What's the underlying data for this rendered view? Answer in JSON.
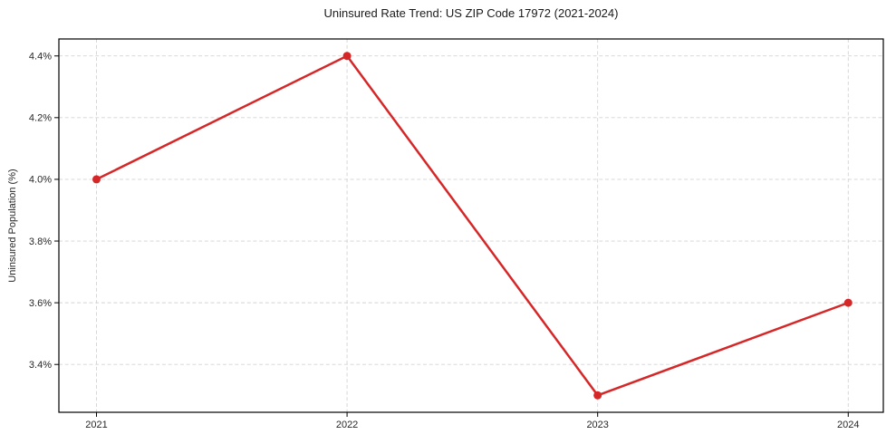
{
  "chart_data": {
    "type": "line",
    "title": "Uninsured Rate Trend: US ZIP Code 17972 (2021-2024)",
    "xlabel": "",
    "ylabel": "Uninsured Population (%)",
    "x": [
      2021,
      2022,
      2023,
      2024
    ],
    "x_tick_labels": [
      "2021",
      "2022",
      "2023",
      "2024"
    ],
    "series": [
      {
        "name": "uninsured-rate",
        "values": [
          4.0,
          4.4,
          3.3,
          3.6
        ],
        "color": "#d62728",
        "marker": "circle",
        "marker_radius": 4.5,
        "line_width": 2.5
      }
    ],
    "y_ticks": [
      3.4,
      3.6,
      3.8,
      4.0,
      4.2,
      4.4
    ],
    "y_tick_labels": [
      "3.4%",
      "3.6%",
      "3.8%",
      "4.0%",
      "4.2%",
      "4.4%"
    ],
    "xlim": [
      2020.85,
      2024.14
    ],
    "ylim": [
      3.245,
      4.455
    ],
    "grid": {
      "show": true,
      "style": "dashed",
      "color": "#d3d3d3"
    },
    "legend": {
      "show": false
    },
    "colors": {
      "axis": "#000000",
      "tick_label": "#262626",
      "title": "#1a1a1a",
      "background": "#ffffff"
    }
  }
}
